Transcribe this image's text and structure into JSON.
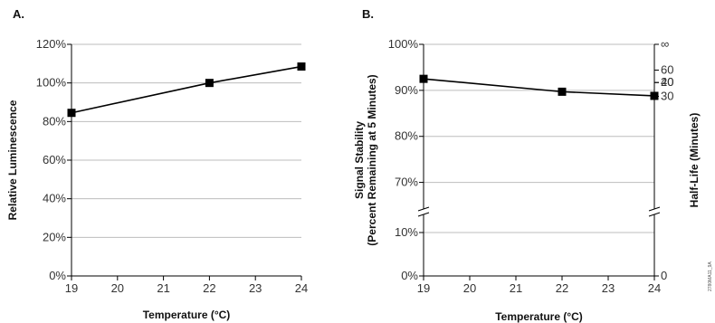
{
  "chart_data": [
    {
      "type": "line",
      "panel_label": "A.",
      "x": [
        19,
        22,
        24
      ],
      "values": [
        84.5,
        100,
        108.5
      ],
      "xticks": [
        "19",
        "20",
        "21",
        "22",
        "23",
        "24"
      ],
      "yticks": [
        "0%",
        "20%",
        "40%",
        "60%",
        "80%",
        "100%",
        "120%"
      ],
      "xlabel": "Temperature (°C)",
      "ylabel": "Relative Luminescence",
      "xlim": [
        19,
        24
      ],
      "ylim": [
        0,
        120
      ],
      "grid": "horizontal",
      "marker": "square",
      "color": "#000000"
    },
    {
      "type": "line",
      "panel_label": "B.",
      "x": [
        19,
        22,
        24
      ],
      "values": [
        92.5,
        89.7,
        88.8
      ],
      "xticks": [
        "19",
        "20",
        "21",
        "22",
        "23",
        "24"
      ],
      "yticks": [
        "0%",
        "10%",
        "70%",
        "80%",
        "90%",
        "100%"
      ],
      "y2ticks": [
        "0",
        "20",
        "30",
        "40",
        "60",
        "∞"
      ],
      "y2tick_values": [
        null,
        91.7,
        88.7,
        91.7,
        94.4,
        100
      ],
      "xlabel": "Temperature (°C)",
      "ylabel_line1": "Signal Stability",
      "ylabel_line2": "(Percent Remaining at 5 Minutes)",
      "y2label": "Half-Life (Minutes)",
      "xlim": [
        19,
        24
      ],
      "ylim_lower": [
        0,
        15
      ],
      "ylim_upper": [
        65,
        100
      ],
      "axis_break": true,
      "grid": "horizontal",
      "marker": "square",
      "color": "#000000"
    }
  ],
  "figure_code": "2780MA11_9A"
}
